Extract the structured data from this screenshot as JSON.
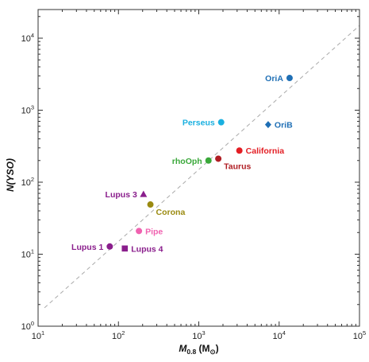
{
  "chart_data": {
    "type": "scatter",
    "xlabel": {
      "main": "M",
      "sub": "0.8",
      "unit_open": " (M",
      "unit_sym": "⊙",
      "unit_close": ")"
    },
    "ylabel": "N(YSO)",
    "xscale": "log",
    "yscale": "log",
    "xlim": [
      10,
      100000
    ],
    "ylim": [
      1,
      25000
    ],
    "x_ticks": [
      {
        "base": "10",
        "exp": "1"
      },
      {
        "base": "10",
        "exp": "2"
      },
      {
        "base": "10",
        "exp": "3"
      },
      {
        "base": "10",
        "exp": "4"
      },
      {
        "base": "10",
        "exp": "5"
      }
    ],
    "y_ticks": [
      {
        "base": "10",
        "exp": "0"
      },
      {
        "base": "10",
        "exp": "1"
      },
      {
        "base": "10",
        "exp": "2"
      },
      {
        "base": "10",
        "exp": "3"
      },
      {
        "base": "10",
        "exp": "4"
      }
    ],
    "reference_line": {
      "style": "dashed",
      "color": "#aaaaaa",
      "points": [
        [
          12,
          1.8
        ],
        [
          100000,
          15000
        ]
      ]
    },
    "grid": false,
    "points": [
      {
        "name": "OriA",
        "x": 13500,
        "y": 2800,
        "color": "#1f6fb5",
        "marker": "circle",
        "label_pos": "left"
      },
      {
        "name": "OriB",
        "x": 7300,
        "y": 630,
        "color": "#1f6fb5",
        "marker": "diamond",
        "label_pos": "right"
      },
      {
        "name": "Perseus",
        "x": 1900,
        "y": 680,
        "color": "#1ab0e0",
        "marker": "circle",
        "label_pos": "left"
      },
      {
        "name": "California",
        "x": 3200,
        "y": 275,
        "color": "#e31e24",
        "marker": "circle",
        "label_pos": "right"
      },
      {
        "name": "Taurus",
        "x": 1750,
        "y": 212,
        "color": "#b01e24",
        "marker": "circle",
        "label_pos": "below-right"
      },
      {
        "name": "rhoOph",
        "x": 1320,
        "y": 200,
        "color": "#3aa83a",
        "marker": "circle",
        "label_pos": "left"
      },
      {
        "name": "Lupus 3",
        "x": 205,
        "y": 68,
        "color": "#8a1e8c",
        "marker": "triangle",
        "label_pos": "left"
      },
      {
        "name": "Corona",
        "x": 250,
        "y": 49,
        "color": "#9a8a10",
        "marker": "circle",
        "label_pos": "below-right"
      },
      {
        "name": "Pipe",
        "x": 180,
        "y": 21,
        "color": "#f062b0",
        "marker": "circle",
        "label_pos": "right"
      },
      {
        "name": "Lupus 1",
        "x": 78,
        "y": 12.8,
        "color": "#8a1e8c",
        "marker": "circle",
        "label_pos": "left"
      },
      {
        "name": "Lupus 4",
        "x": 120,
        "y": 12,
        "color": "#8a1e8c",
        "marker": "square",
        "label_pos": "right"
      }
    ]
  }
}
